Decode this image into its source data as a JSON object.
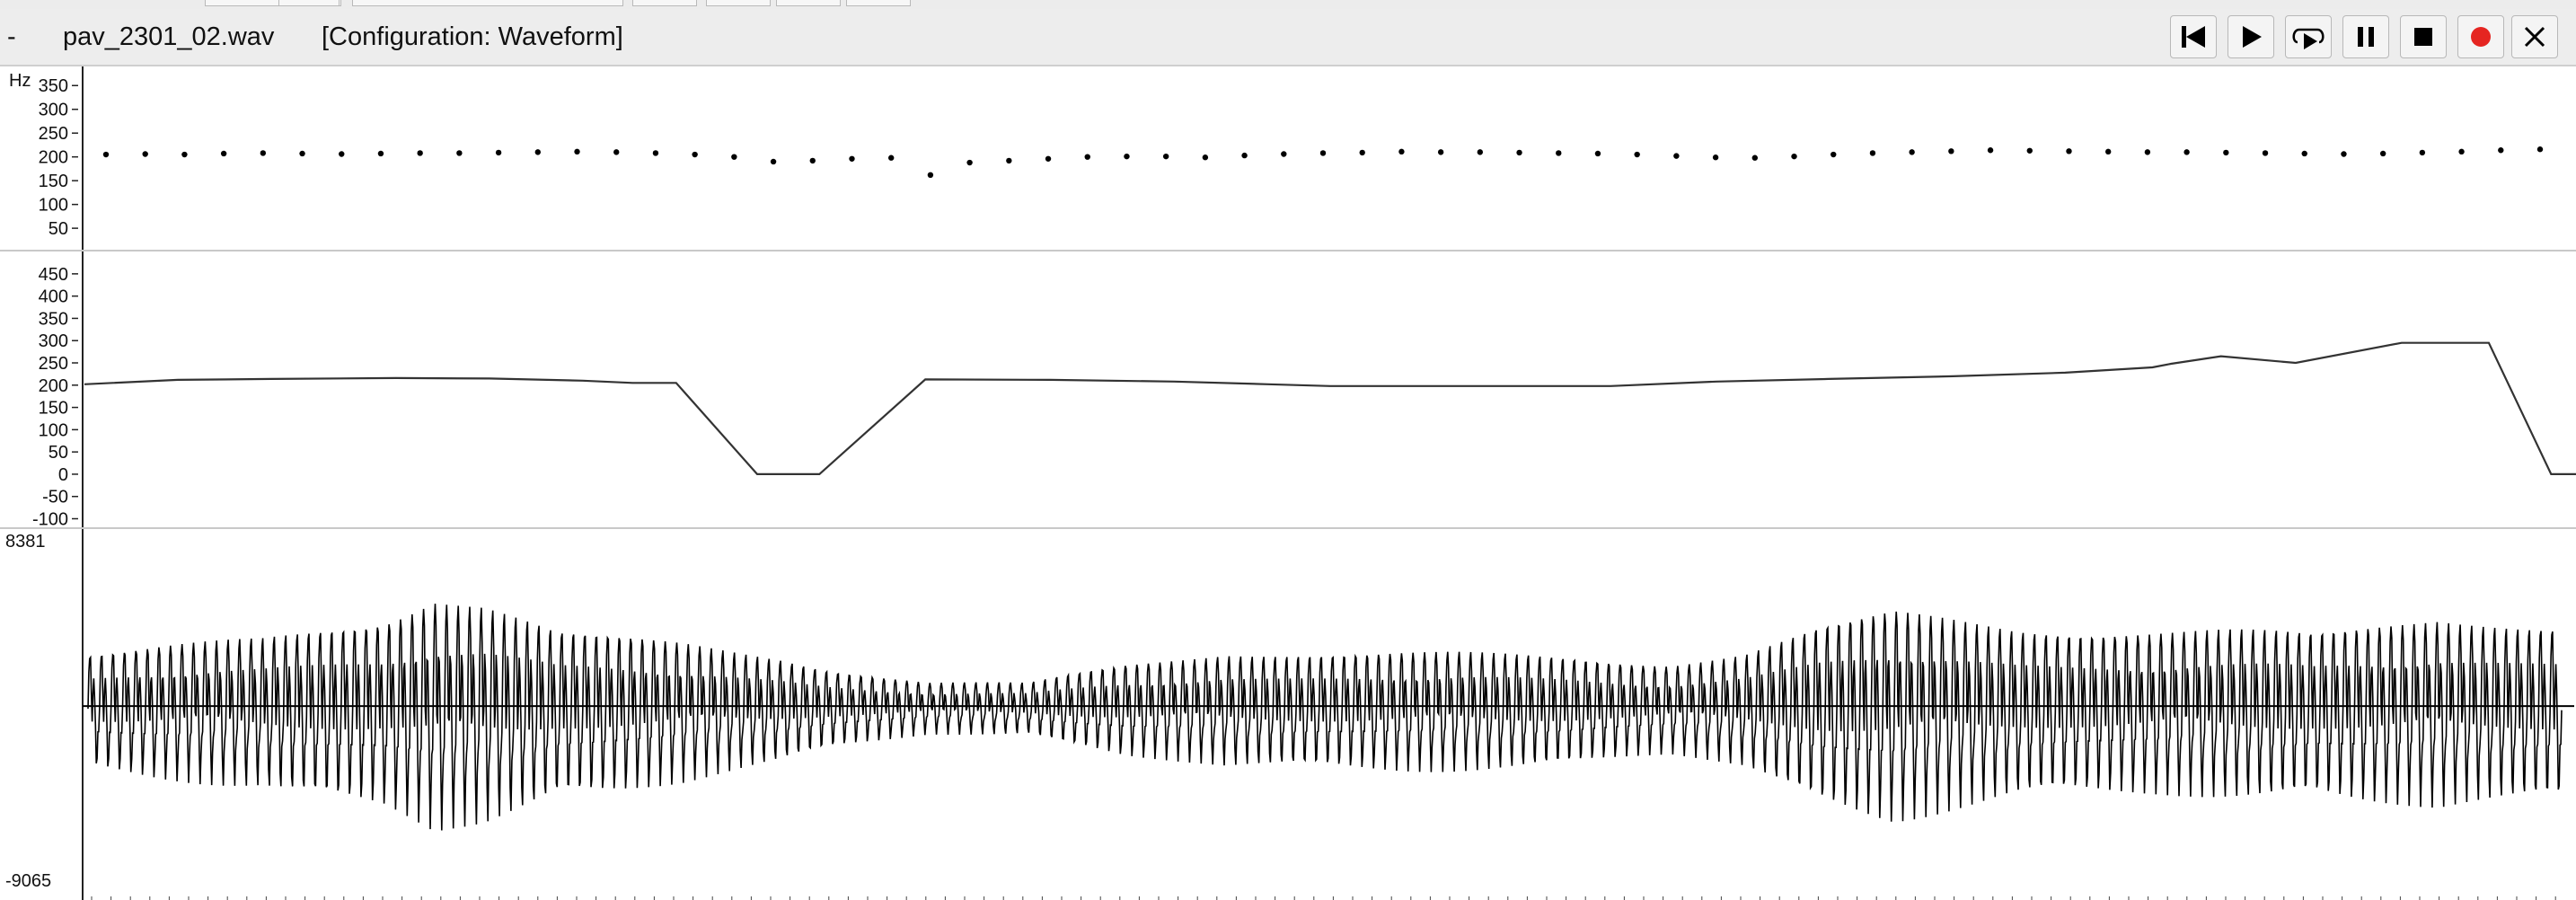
{
  "toolbar": {
    "menu_glyph": "-",
    "filename": "pav_2301_02.wav",
    "configuration": "[Configuration: Waveform]",
    "buttons": [
      {
        "name": "skip-back",
        "icon": "skip-back-icon"
      },
      {
        "name": "play",
        "icon": "play-icon"
      },
      {
        "name": "loop-play",
        "icon": "loop-play-icon"
      },
      {
        "name": "pause",
        "icon": "pause-icon"
      },
      {
        "name": "stop",
        "icon": "stop-icon"
      },
      {
        "name": "record",
        "icon": "record-icon",
        "color": "#e52521"
      },
      {
        "name": "close",
        "icon": "close-icon"
      }
    ]
  },
  "pitch_dots_panel": {
    "unit": "Hz",
    "ticks": [
      "350",
      "300",
      "250",
      "200",
      "150",
      "100",
      "50"
    ],
    "ylim": [
      20,
      375
    ]
  },
  "pitch_line_panel": {
    "ticks": [
      "450",
      "400",
      "350",
      "300",
      "250",
      "200",
      "150",
      "100",
      "50",
      "0",
      "-50",
      "-100"
    ],
    "ylim": [
      -105,
      480
    ]
  },
  "waveform_panel": {
    "max_label": "8381",
    "min_label": "-9065",
    "ylim": [
      -9065,
      8381
    ]
  },
  "chart_data": [
    {
      "type": "scatter",
      "ylabel": "Hz",
      "ylim": [
        20,
        375
      ],
      "x": [
        1,
        2,
        3,
        4,
        5,
        6,
        7,
        8,
        9,
        10,
        11,
        12,
        13,
        14,
        15,
        16,
        17,
        18,
        19,
        20,
        21,
        22,
        23,
        24,
        25,
        26,
        27,
        28,
        29,
        30,
        31,
        32,
        33,
        34,
        35,
        36,
        37,
        38,
        39,
        40,
        41,
        42,
        43,
        44,
        45,
        46,
        47,
        48,
        49,
        50,
        51,
        52,
        53,
        54,
        55,
        56,
        57,
        58,
        59,
        60,
        61,
        62,
        63
      ],
      "values": [
        205,
        206,
        205,
        207,
        208,
        207,
        206,
        207,
        208,
        208,
        209,
        210,
        211,
        210,
        208,
        205,
        200,
        190,
        192,
        196,
        198,
        162,
        188,
        192,
        196,
        200,
        201,
        201,
        199,
        203,
        206,
        208,
        209,
        211,
        210,
        210,
        209,
        208,
        207,
        205,
        202,
        199,
        198,
        201,
        205,
        208,
        210,
        212,
        214,
        213,
        212,
        211,
        210,
        210,
        209,
        208,
        207,
        206,
        207,
        209,
        211,
        214,
        216
      ],
      "grid": false
    },
    {
      "type": "line",
      "ylim": [
        -105,
        480
      ],
      "x": [
        0,
        15,
        30,
        50,
        65,
        80,
        88,
        95,
        108,
        118,
        135,
        155,
        175,
        190,
        200,
        215,
        230,
        245,
        262,
        280,
        300,
        318,
        332,
        335,
        343,
        355,
        372,
        386,
        396,
        400
      ],
      "values": [
        202,
        212,
        214,
        216,
        215,
        210,
        205,
        205,
        0,
        0,
        213,
        212,
        208,
        202,
        198,
        198,
        198,
        198,
        208,
        214,
        220,
        228,
        240,
        248,
        265,
        250,
        295,
        295,
        0,
        0
      ],
      "grid": false
    },
    {
      "type": "line",
      "ylim": [
        -9065,
        8381
      ],
      "grid": false
    }
  ]
}
